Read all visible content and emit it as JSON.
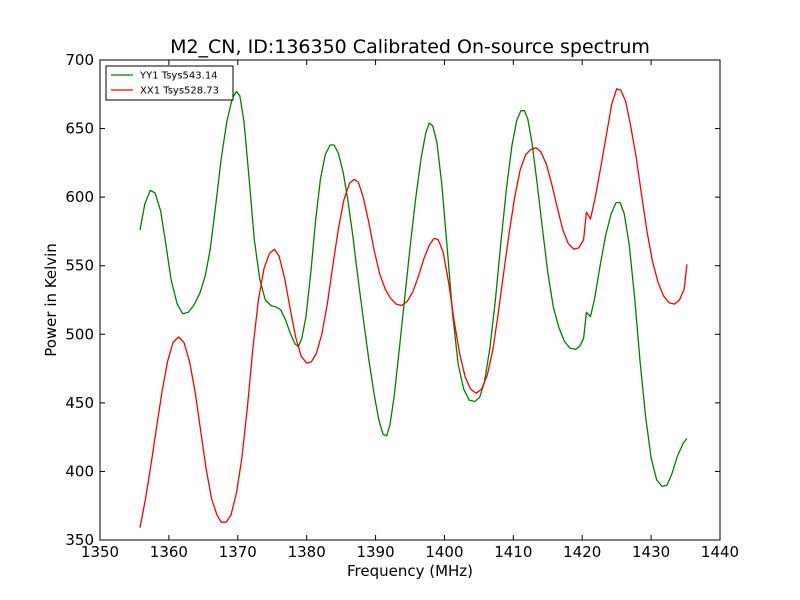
{
  "chart_data": {
    "type": "line",
    "title": "M2_CN, ID:136350 Calibrated On-source spectrum",
    "xlabel": "Frequency (MHz)",
    "ylabel": "Power in Kelvin",
    "xlim": [
      1350,
      1440
    ],
    "ylim": [
      350,
      700
    ],
    "xticks": [
      1350,
      1360,
      1370,
      1380,
      1390,
      1400,
      1410,
      1420,
      1430,
      1440
    ],
    "yticks": [
      350,
      400,
      450,
      500,
      550,
      600,
      650,
      700
    ],
    "grid": false,
    "legend_position": "top-left",
    "series": [
      {
        "name": "YY1 Tsys543.14",
        "color": "#008000",
        "points": [
          [
            1355.8,
            576
          ],
          [
            1356.5,
            595
          ],
          [
            1357.3,
            605
          ],
          [
            1358.0,
            603
          ],
          [
            1358.8,
            590
          ],
          [
            1359.5,
            568
          ],
          [
            1360.3,
            540
          ],
          [
            1361.2,
            522
          ],
          [
            1362.0,
            515
          ],
          [
            1362.8,
            516
          ],
          [
            1363.6,
            521
          ],
          [
            1364.5,
            530
          ],
          [
            1365.3,
            543
          ],
          [
            1366.0,
            562
          ],
          [
            1366.8,
            594
          ],
          [
            1367.6,
            628
          ],
          [
            1368.4,
            655
          ],
          [
            1369.2,
            672
          ],
          [
            1369.8,
            677
          ],
          [
            1370.3,
            674
          ],
          [
            1370.9,
            655
          ],
          [
            1371.6,
            616
          ],
          [
            1372.4,
            569
          ],
          [
            1373.2,
            540
          ],
          [
            1374.0,
            525
          ],
          [
            1374.8,
            521
          ],
          [
            1375.5,
            520
          ],
          [
            1376.2,
            518
          ],
          [
            1376.9,
            511
          ],
          [
            1377.6,
            501
          ],
          [
            1378.3,
            493
          ],
          [
            1378.8,
            491
          ],
          [
            1379.3,
            497
          ],
          [
            1379.9,
            513
          ],
          [
            1380.6,
            545
          ],
          [
            1381.3,
            583
          ],
          [
            1382.0,
            613
          ],
          [
            1382.7,
            631
          ],
          [
            1383.4,
            638
          ],
          [
            1384.0,
            638
          ],
          [
            1384.6,
            632
          ],
          [
            1385.3,
            618
          ],
          [
            1386.0,
            597
          ],
          [
            1386.7,
            572
          ],
          [
            1387.4,
            543
          ],
          [
            1388.2,
            512
          ],
          [
            1389.0,
            482
          ],
          [
            1389.8,
            456
          ],
          [
            1390.5,
            437
          ],
          [
            1391.1,
            427
          ],
          [
            1391.6,
            426
          ],
          [
            1392.1,
            434
          ],
          [
            1392.7,
            455
          ],
          [
            1393.4,
            487
          ],
          [
            1394.2,
            525
          ],
          [
            1395.0,
            563
          ],
          [
            1395.8,
            598
          ],
          [
            1396.6,
            628
          ],
          [
            1397.3,
            647
          ],
          [
            1397.8,
            654
          ],
          [
            1398.3,
            652
          ],
          [
            1398.9,
            640
          ],
          [
            1399.6,
            610
          ],
          [
            1400.4,
            563
          ],
          [
            1401.2,
            514
          ],
          [
            1402.0,
            478
          ],
          [
            1402.8,
            460
          ],
          [
            1403.6,
            452
          ],
          [
            1404.4,
            451
          ],
          [
            1405.1,
            454
          ],
          [
            1405.8,
            465
          ],
          [
            1406.6,
            490
          ],
          [
            1407.4,
            525
          ],
          [
            1408.2,
            567
          ],
          [
            1409.0,
            606
          ],
          [
            1409.8,
            638
          ],
          [
            1410.5,
            656
          ],
          [
            1411.1,
            663
          ],
          [
            1411.6,
            663
          ],
          [
            1412.1,
            657
          ],
          [
            1412.7,
            640
          ],
          [
            1413.4,
            612
          ],
          [
            1414.2,
            578
          ],
          [
            1415.0,
            545
          ],
          [
            1415.8,
            520
          ],
          [
            1416.6,
            505
          ],
          [
            1417.4,
            495
          ],
          [
            1418.2,
            490
          ],
          [
            1419.0,
            489
          ],
          [
            1419.6,
            491
          ],
          [
            1420.2,
            497
          ],
          [
            1420.6,
            516
          ],
          [
            1421.2,
            513
          ],
          [
            1421.8,
            526
          ],
          [
            1422.6,
            550
          ],
          [
            1423.4,
            572
          ],
          [
            1424.2,
            588
          ],
          [
            1424.9,
            596
          ],
          [
            1425.5,
            596
          ],
          [
            1426.1,
            588
          ],
          [
            1426.8,
            566
          ],
          [
            1427.6,
            527
          ],
          [
            1428.4,
            480
          ],
          [
            1429.2,
            440
          ],
          [
            1430.0,
            410
          ],
          [
            1430.8,
            394
          ],
          [
            1431.6,
            389
          ],
          [
            1432.3,
            390
          ],
          [
            1433.0,
            398
          ],
          [
            1433.8,
            411
          ],
          [
            1434.6,
            420
          ],
          [
            1435.2,
            424
          ]
        ]
      },
      {
        "name": "XX1 Tsys528.73",
        "color": "#ff0000",
        "points": [
          [
            1355.8,
            359
          ],
          [
            1356.6,
            380
          ],
          [
            1357.4,
            405
          ],
          [
            1358.2,
            432
          ],
          [
            1359.0,
            458
          ],
          [
            1359.8,
            480
          ],
          [
            1360.6,
            494
          ],
          [
            1361.4,
            498
          ],
          [
            1362.2,
            494
          ],
          [
            1363.0,
            480
          ],
          [
            1363.8,
            458
          ],
          [
            1364.6,
            430
          ],
          [
            1365.4,
            402
          ],
          [
            1366.2,
            380
          ],
          [
            1367.0,
            368
          ],
          [
            1367.6,
            363
          ],
          [
            1368.3,
            363
          ],
          [
            1369.0,
            368
          ],
          [
            1369.8,
            384
          ],
          [
            1370.6,
            410
          ],
          [
            1371.4,
            447
          ],
          [
            1372.2,
            490
          ],
          [
            1373.0,
            525
          ],
          [
            1373.8,
            548
          ],
          [
            1374.6,
            559
          ],
          [
            1375.3,
            562
          ],
          [
            1376.0,
            557
          ],
          [
            1376.8,
            541
          ],
          [
            1377.6,
            519
          ],
          [
            1378.4,
            498
          ],
          [
            1379.2,
            484
          ],
          [
            1380.0,
            479
          ],
          [
            1380.7,
            480
          ],
          [
            1381.4,
            486
          ],
          [
            1382.2,
            500
          ],
          [
            1383.0,
            522
          ],
          [
            1383.8,
            550
          ],
          [
            1384.6,
            577
          ],
          [
            1385.4,
            598
          ],
          [
            1386.2,
            610
          ],
          [
            1386.9,
            613
          ],
          [
            1387.5,
            611
          ],
          [
            1388.2,
            600
          ],
          [
            1389.0,
            582
          ],
          [
            1389.8,
            561
          ],
          [
            1390.6,
            544
          ],
          [
            1391.4,
            533
          ],
          [
            1392.2,
            526
          ],
          [
            1393.0,
            522
          ],
          [
            1393.8,
            521
          ],
          [
            1394.6,
            524
          ],
          [
            1395.4,
            531
          ],
          [
            1396.2,
            542
          ],
          [
            1397.0,
            555
          ],
          [
            1397.8,
            565
          ],
          [
            1398.5,
            570
          ],
          [
            1399.1,
            569
          ],
          [
            1399.8,
            560
          ],
          [
            1400.6,
            538
          ],
          [
            1401.4,
            510
          ],
          [
            1402.2,
            486
          ],
          [
            1403.0,
            469
          ],
          [
            1403.8,
            460
          ],
          [
            1404.6,
            457
          ],
          [
            1405.4,
            460
          ],
          [
            1406.2,
            470
          ],
          [
            1407.0,
            488
          ],
          [
            1407.8,
            515
          ],
          [
            1408.6,
            545
          ],
          [
            1409.4,
            574
          ],
          [
            1410.2,
            600
          ],
          [
            1411.0,
            620
          ],
          [
            1411.8,
            631
          ],
          [
            1412.6,
            635
          ],
          [
            1413.3,
            636
          ],
          [
            1414.0,
            633
          ],
          [
            1414.8,
            624
          ],
          [
            1415.6,
            609
          ],
          [
            1416.4,
            592
          ],
          [
            1417.2,
            576
          ],
          [
            1418.0,
            566
          ],
          [
            1418.8,
            562
          ],
          [
            1419.5,
            563
          ],
          [
            1420.2,
            569
          ],
          [
            1420.6,
            589
          ],
          [
            1421.2,
            584
          ],
          [
            1421.9,
            600
          ],
          [
            1422.7,
            622
          ],
          [
            1423.5,
            645
          ],
          [
            1424.3,
            668
          ],
          [
            1425.0,
            679
          ],
          [
            1425.6,
            678
          ],
          [
            1426.3,
            670
          ],
          [
            1427.0,
            653
          ],
          [
            1427.8,
            630
          ],
          [
            1428.6,
            602
          ],
          [
            1429.4,
            575
          ],
          [
            1430.2,
            553
          ],
          [
            1431.0,
            538
          ],
          [
            1431.8,
            528
          ],
          [
            1432.6,
            523
          ],
          [
            1433.4,
            522
          ],
          [
            1434.1,
            525
          ],
          [
            1434.8,
            533
          ],
          [
            1435.2,
            551
          ]
        ]
      }
    ]
  }
}
